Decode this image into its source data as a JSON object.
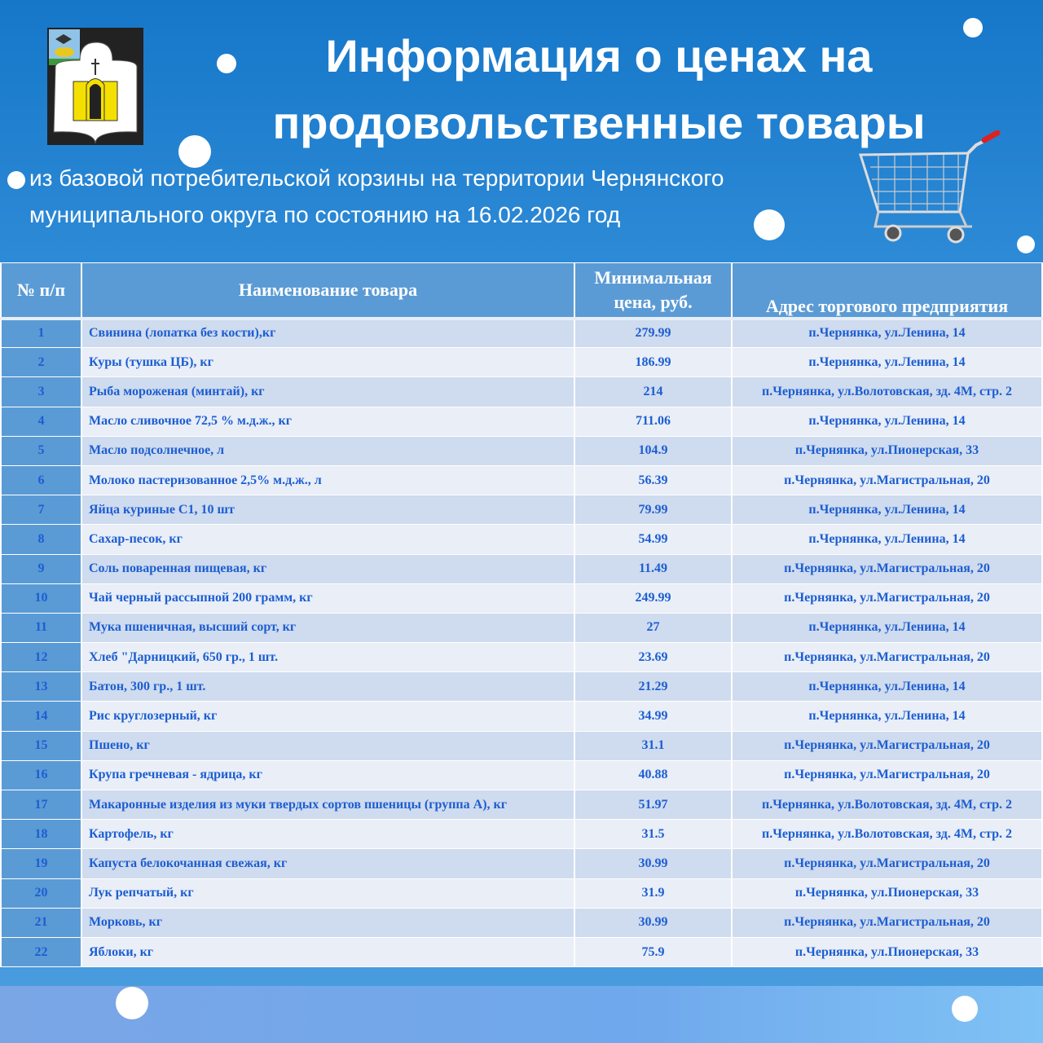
{
  "header": {
    "title": "Информация о  ценах на продовольственные товары",
    "subtitle_line1": "из базовой потребительской корзины на территории Чернянского",
    "subtitle_line2": "муниципального округа по состоянию на 16.02.2026 год"
  },
  "colors": {
    "background": "#1677c9",
    "table_header": "#5b9bd5",
    "text": "#1c5ed2",
    "row_odd": "#cfdbee",
    "row_even": "#e9eef7"
  },
  "table": {
    "columns": [
      "№ п/п",
      "Наименование товара",
      "Минимальная цена, руб.",
      "Адрес торгового предприятия"
    ],
    "rows": [
      [
        "1",
        "Свинина (лопатка без кости),кг",
        "279.99",
        "п.Чернянка, ул.Ленина, 14"
      ],
      [
        "2",
        "Куры (тушка ЦБ), кг",
        "186.99",
        "п.Чернянка, ул.Ленина, 14"
      ],
      [
        "3",
        "Рыба мороженая (минтай), кг",
        "214",
        "п.Чернянка, ул.Волотовская, зд. 4М, стр. 2"
      ],
      [
        "4",
        "Масло сливочное 72,5 % м.д.ж., кг",
        "711.06",
        "п.Чернянка, ул.Ленина, 14"
      ],
      [
        "5",
        "Масло подсолнечное, л",
        "104.9",
        "п.Чернянка, ул.Пионерская, 33"
      ],
      [
        "6",
        "Молоко пастеризованное 2,5% м.д.ж., л",
        "56.39",
        "п.Чернянка, ул.Магистральная, 20"
      ],
      [
        "7",
        "Яйца куриные С1, 10 шт",
        "79.99",
        "п.Чернянка, ул.Ленина, 14"
      ],
      [
        "8",
        "Сахар-песок, кг",
        "54.99",
        "п.Чернянка, ул.Ленина, 14"
      ],
      [
        "9",
        "Соль поваренная пищевая, кг",
        "11.49",
        "п.Чернянка, ул.Магистральная, 20"
      ],
      [
        "10",
        "Чай черный рассыпной 200 грамм, кг",
        "249.99",
        "п.Чернянка, ул.Магистральная, 20"
      ],
      [
        "11",
        "Мука пшеничная, высший сорт, кг",
        "27",
        "п.Чернянка, ул.Ленина, 14"
      ],
      [
        "12",
        "Хлеб \"Дарницкий, 650 гр., 1 шт.",
        "23.69",
        "п.Чернянка, ул.Магистральная, 20"
      ],
      [
        "13",
        "Батон, 300 гр., 1 шт.",
        "21.29",
        "п.Чернянка, ул.Ленина, 14"
      ],
      [
        "14",
        "Рис круглозерный, кг",
        "34.99",
        "п.Чернянка, ул.Ленина, 14"
      ],
      [
        "15",
        "Пшено, кг",
        "31.1",
        "п.Чернянка, ул.Магистральная, 20"
      ],
      [
        "16",
        "Крупа гречневая - ядрица, кг",
        "40.88",
        "п.Чернянка, ул.Магистральная, 20"
      ],
      [
        "17",
        "Макаронные изделия из муки твердых сортов пшеницы (группа А), кг",
        "51.97",
        "п.Чернянка, ул.Волотовская, зд. 4М, стр. 2"
      ],
      [
        "18",
        "Картофель, кг",
        "31.5",
        "п.Чернянка, ул.Волотовская, зд. 4М, стр. 2"
      ],
      [
        "19",
        "Капуста белокочанная свежая, кг",
        "30.99",
        "п.Чернянка, ул.Магистральная, 20"
      ],
      [
        "20",
        "Лук репчатый, кг",
        "31.9",
        "п.Чернянка, ул.Пионерская, 33"
      ],
      [
        "21",
        "Морковь, кг",
        "30.99",
        "п.Чернянка, ул.Магистральная, 20"
      ],
      [
        "22",
        "Яблоки, кг",
        "75.9",
        "п.Чернянка, ул.Пионерская, 33"
      ]
    ]
  },
  "icons": {
    "logo": "coat-of-arms",
    "cart": "shopping-cart-icon"
  }
}
